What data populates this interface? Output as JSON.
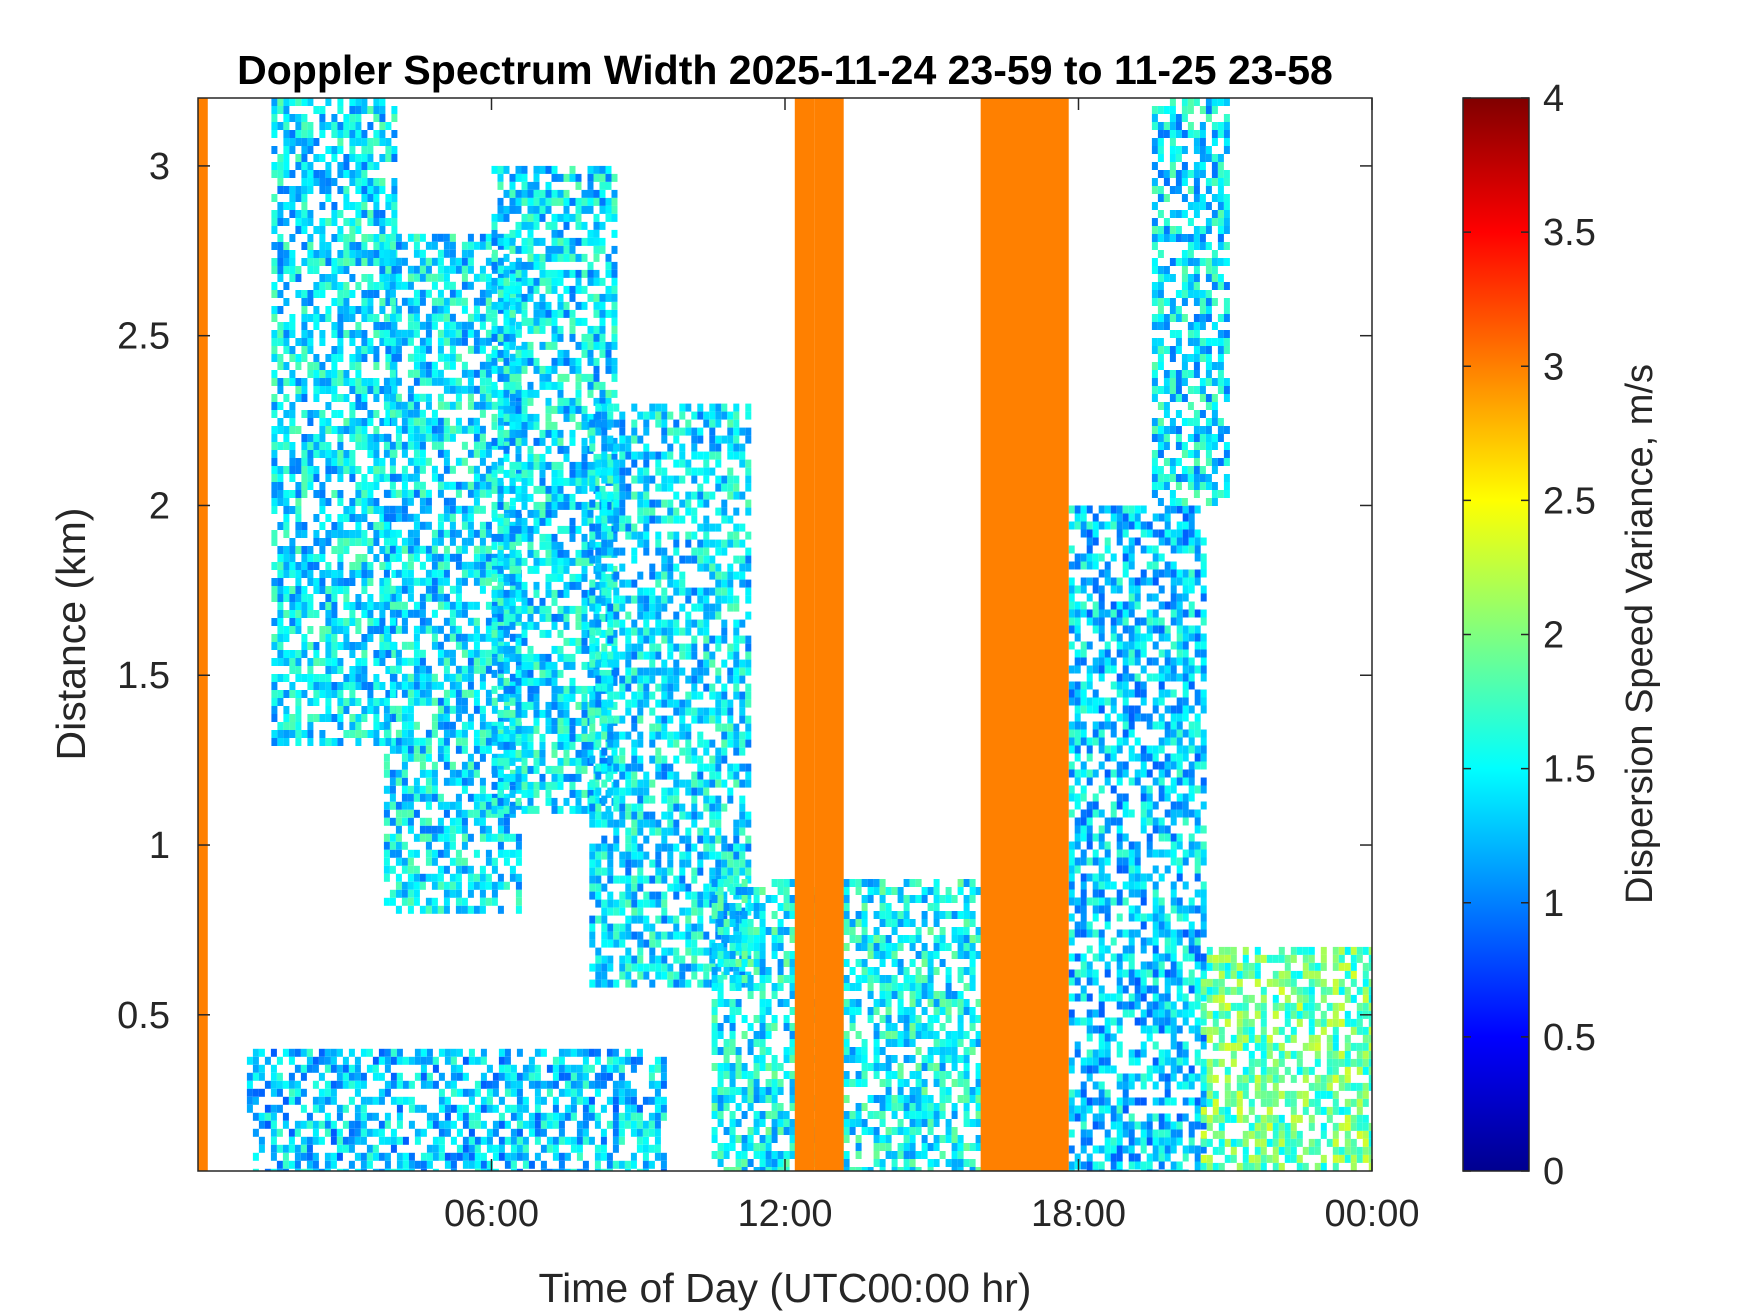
{
  "chart_data": {
    "type": "heatmap",
    "title": "Doppler Spectrum Width 2025-11-24 23-59 to 11-25 23-58",
    "xlabel": "Time of Day (UTC00:00 hr)",
    "ylabel": "Distance (km)",
    "x_unit": "hours since 00:00 UTC",
    "xlim": [
      0,
      24
    ],
    "ylim": [
      0.04,
      3.2
    ],
    "x_ticks": [
      {
        "value": 6,
        "label": "06:00"
      },
      {
        "value": 12,
        "label": "12:00"
      },
      {
        "value": 18,
        "label": "18:00"
      },
      {
        "value": 24,
        "label": "00:00"
      }
    ],
    "y_ticks": [
      {
        "value": 0.5,
        "label": "0.5"
      },
      {
        "value": 1,
        "label": "1"
      },
      {
        "value": 1.5,
        "label": "1.5"
      },
      {
        "value": 2,
        "label": "2"
      },
      {
        "value": 2.5,
        "label": "2.5"
      },
      {
        "value": 3,
        "label": "3"
      }
    ],
    "colorbar": {
      "label": "Dispersion Speed Variance, m/s",
      "colormap": "jet",
      "range": [
        0,
        4
      ],
      "ticks": [
        {
          "value": 0,
          "label": "0"
        },
        {
          "value": 0.5,
          "label": "0.5"
        },
        {
          "value": 1,
          "label": "1"
        },
        {
          "value": 1.5,
          "label": "1.5"
        },
        {
          "value": 2,
          "label": "2"
        },
        {
          "value": 2.5,
          "label": "2.5"
        },
        {
          "value": 3,
          "label": "3"
        },
        {
          "value": 3.5,
          "label": "3.5"
        },
        {
          "value": 4,
          "label": "4"
        }
      ]
    },
    "saturated_bands": [
      {
        "x_start": 0.0,
        "x_end": 0.2,
        "value": 3
      },
      {
        "x_start": 12.2,
        "x_end": 12.6,
        "value": 3
      },
      {
        "x_start": 12.6,
        "x_end": 13.2,
        "value": 3
      },
      {
        "x_start": 16.0,
        "x_end": 17.8,
        "value": 3
      }
    ],
    "echo_regions": [
      {
        "x_start": 1.5,
        "x_end": 4.0,
        "y_start": 1.3,
        "y_end": 3.2,
        "value": 1.4
      },
      {
        "x_start": 3.8,
        "x_end": 6.5,
        "y_start": 0.8,
        "y_end": 2.8,
        "value": 1.4
      },
      {
        "x_start": 6.0,
        "x_end": 8.5,
        "y_start": 1.1,
        "y_end": 3.0,
        "value": 1.4
      },
      {
        "x_start": 8.0,
        "x_end": 11.2,
        "y_start": 0.6,
        "y_end": 2.3,
        "value": 1.4
      },
      {
        "x_start": 10.5,
        "x_end": 16.0,
        "y_start": 0.04,
        "y_end": 0.9,
        "value": 1.5
      },
      {
        "x_start": 17.8,
        "x_end": 20.5,
        "y_start": 0.04,
        "y_end": 2.0,
        "value": 1.3
      },
      {
        "x_start": 19.5,
        "x_end": 21.0,
        "y_start": 2.0,
        "y_end": 3.2,
        "value": 1.4
      },
      {
        "x_start": 20.5,
        "x_end": 24.0,
        "y_start": 0.04,
        "y_end": 0.7,
        "value": 1.9
      },
      {
        "x_start": 1.0,
        "x_end": 9.5,
        "y_start": 0.04,
        "y_end": 0.4,
        "value": 1.3
      }
    ],
    "grid": false
  }
}
